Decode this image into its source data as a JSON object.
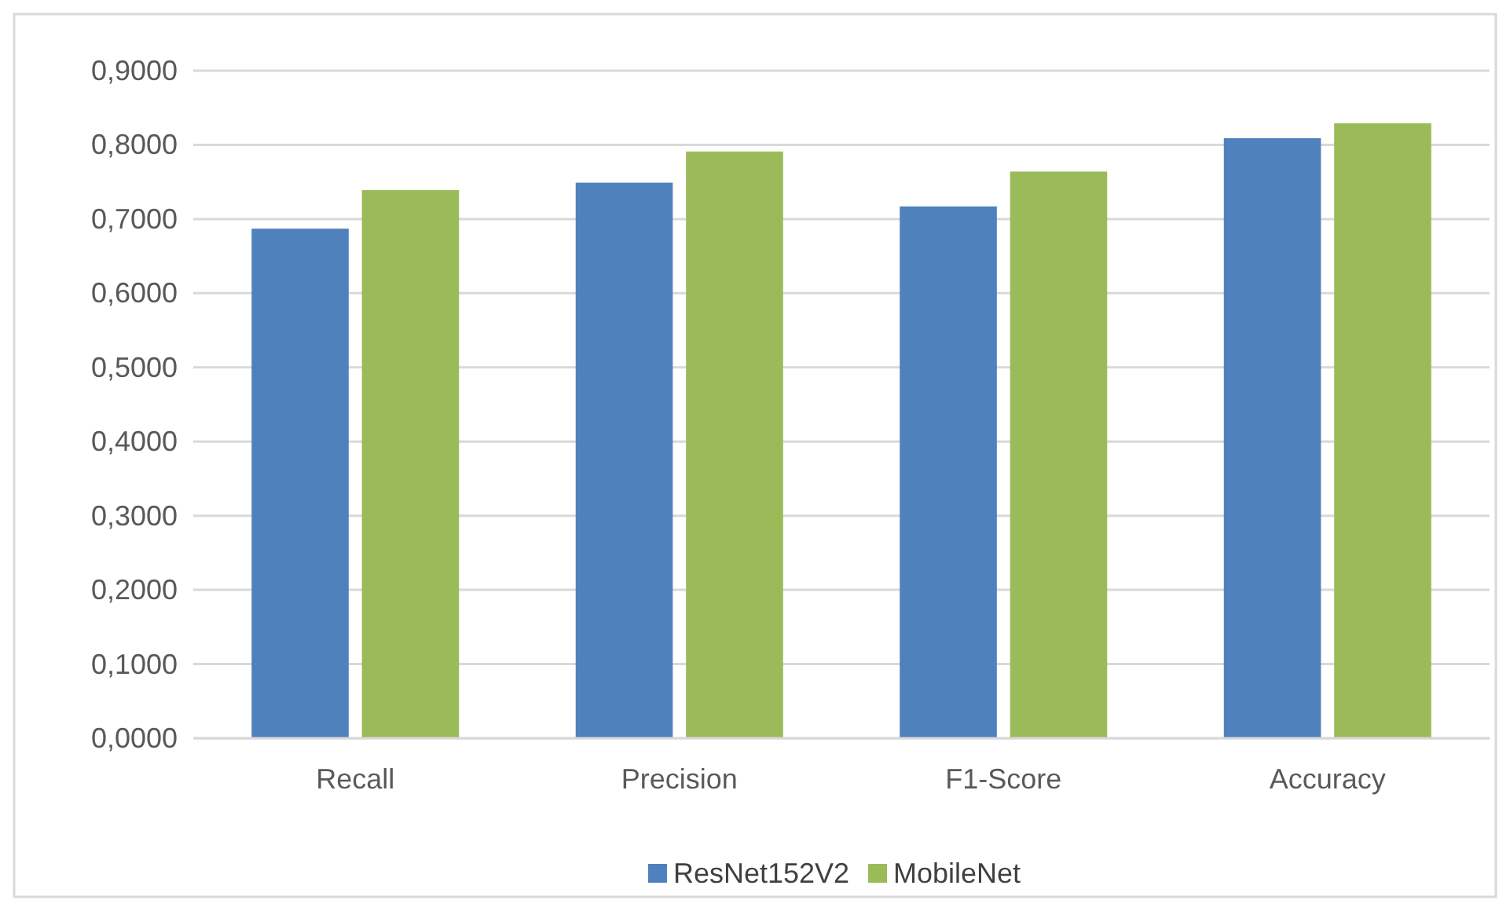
{
  "chart_data": {
    "type": "bar",
    "categories": [
      "Recall",
      "Precision",
      "F1-Score",
      "Accuracy"
    ],
    "series": [
      {
        "name": "ResNet152V2",
        "color": "#4f81bd",
        "values": [
          0.687,
          0.749,
          0.717,
          0.809
        ]
      },
      {
        "name": "MobileNet",
        "color": "#9bbb59",
        "values": [
          0.739,
          0.791,
          0.764,
          0.829
        ]
      }
    ],
    "ylim": [
      0,
      0.9
    ],
    "yticks": [
      {
        "value": 0,
        "label": "0,0000"
      },
      {
        "value": 0.1,
        "label": "0,1000"
      },
      {
        "value": 0.2,
        "label": "0,2000"
      },
      {
        "value": 0.3,
        "label": "0,3000"
      },
      {
        "value": 0.4,
        "label": "0,4000"
      },
      {
        "value": 0.5,
        "label": "0,5000"
      },
      {
        "value": 0.6,
        "label": "0,6000"
      },
      {
        "value": 0.7,
        "label": "0,7000"
      },
      {
        "value": 0.8,
        "label": "0,8000"
      },
      {
        "value": 0.9,
        "label": "0,9000"
      }
    ],
    "grid": "y",
    "legend": "bottom"
  }
}
